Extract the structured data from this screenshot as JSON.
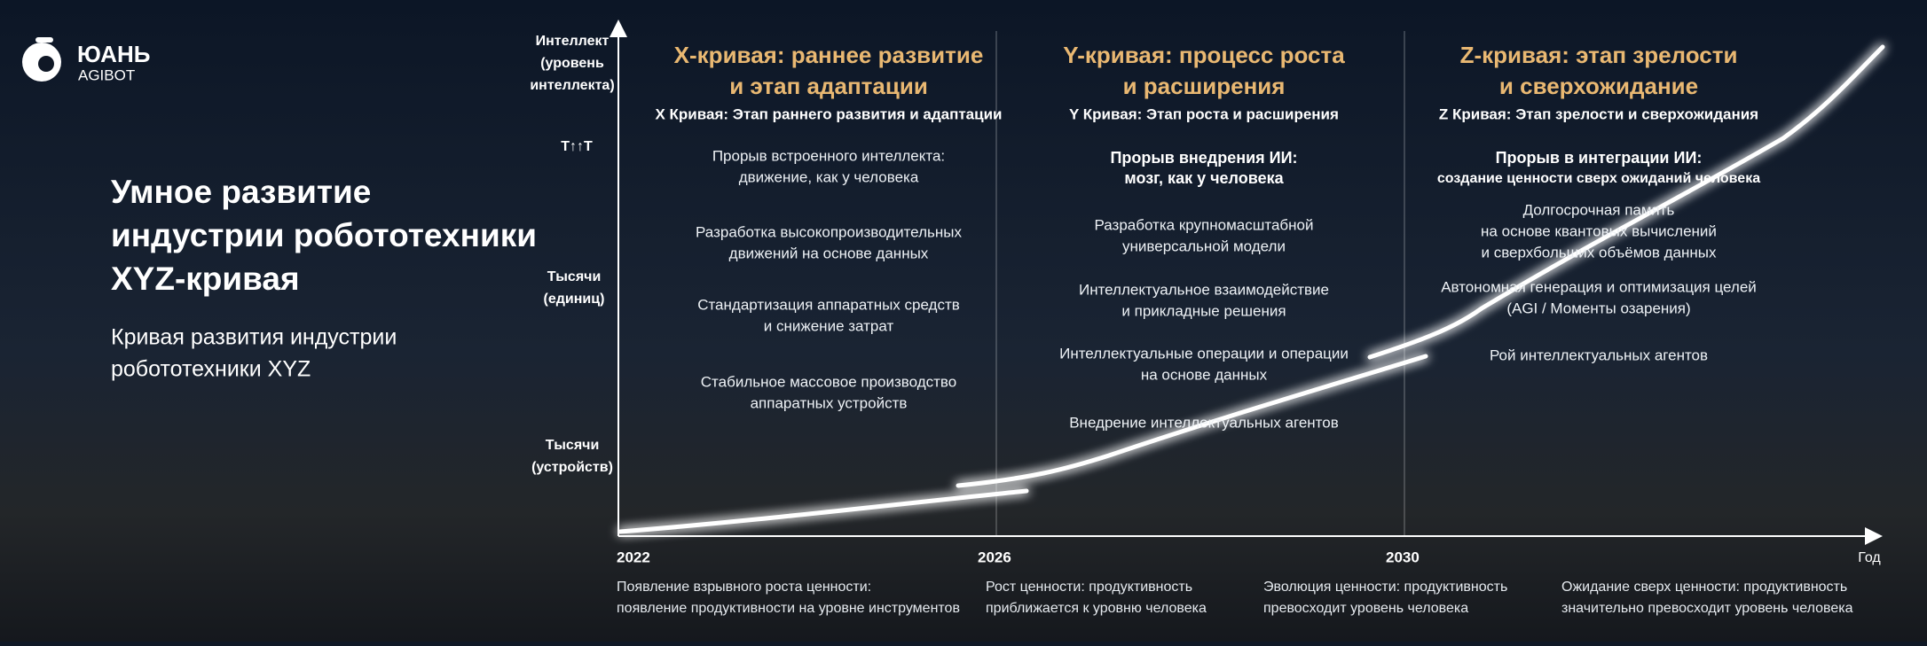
{
  "logo": {
    "name": "ЮАНЬ",
    "sub": "AGIBOT"
  },
  "title": [
    "Умное развитие",
    "индустрии робототехники",
    "XYZ-кривая"
  ],
  "subtitle": [
    "Кривая развития индустрии",
    "робототехники XYZ"
  ],
  "y_axis": {
    "top": [
      "Интеллект",
      "(уровень",
      "интеллекта)"
    ],
    "mark": "T↑↑T",
    "middle": [
      "Тысячи",
      "(единиц)"
    ],
    "bottom": [
      "Тысячи",
      "(устройств)"
    ]
  },
  "x_axis": {
    "ticks": [
      "2022",
      "2026",
      "2030"
    ],
    "label": "Год"
  },
  "sections": [
    {
      "title": [
        "X-кривая: раннее развитие",
        "и этап адаптации"
      ],
      "subtitle": "X Кривая: Этап раннего развития и адаптации",
      "items": [
        [
          "Прорыв встроенного интеллекта:",
          "движение, как у человека"
        ],
        [
          "Разработка высокопроизводительных",
          "движений на основе данных"
        ],
        [
          "Стандартизация аппаратных средств",
          "и снижение затрат"
        ],
        [
          "Стабильное массовое производство",
          "аппаратных устройств"
        ]
      ]
    },
    {
      "title": [
        "Y-кривая: процесс роста",
        "и расширения"
      ],
      "subtitle": "Y Кривая: Этап роста и расширения",
      "highlight": [
        "Прорыв внедрения ИИ:",
        "мозг, как у человека"
      ],
      "items": [
        [
          "Разработка крупномасштабной",
          "универсальной модели"
        ],
        [
          "Интеллектуальное взаимодействие",
          "и прикладные решения"
        ],
        [
          "Интеллектуальные операции и операции",
          "на основе данных"
        ],
        [
          "Внедрение интеллектуальных агентов"
        ]
      ]
    },
    {
      "title": [
        "Z-кривая: этап зрелости",
        "и сверхожидание"
      ],
      "subtitle": "Z Кривая: Этап зрелости и сверхожидания",
      "highlight": [
        "Прорыв в интеграции ИИ:",
        "создание ценности сверх ожиданий человека"
      ],
      "items": [
        [
          "Долгосрочная память",
          "на основе квантовых вычислений",
          "и сверхбольших объёмов данных"
        ],
        [
          "Автономная генерация и оптимизация целей",
          "(AGI / Моменты озарения)"
        ],
        [
          "Рой интеллектуальных агентов"
        ]
      ]
    }
  ],
  "notes": [
    [
      "Появление взрывного роста ценности:",
      "появление продуктивности на уровне инструментов"
    ],
    [
      "Рост ценности: продуктивность",
      "приближается к уровню человека"
    ],
    [
      "Эволюция ценности: продуктивность",
      "превосходит уровень человека"
    ],
    [
      "Ожидание сверх ценности: продуктивность",
      "значительно превосходит уровень человека"
    ]
  ]
}
